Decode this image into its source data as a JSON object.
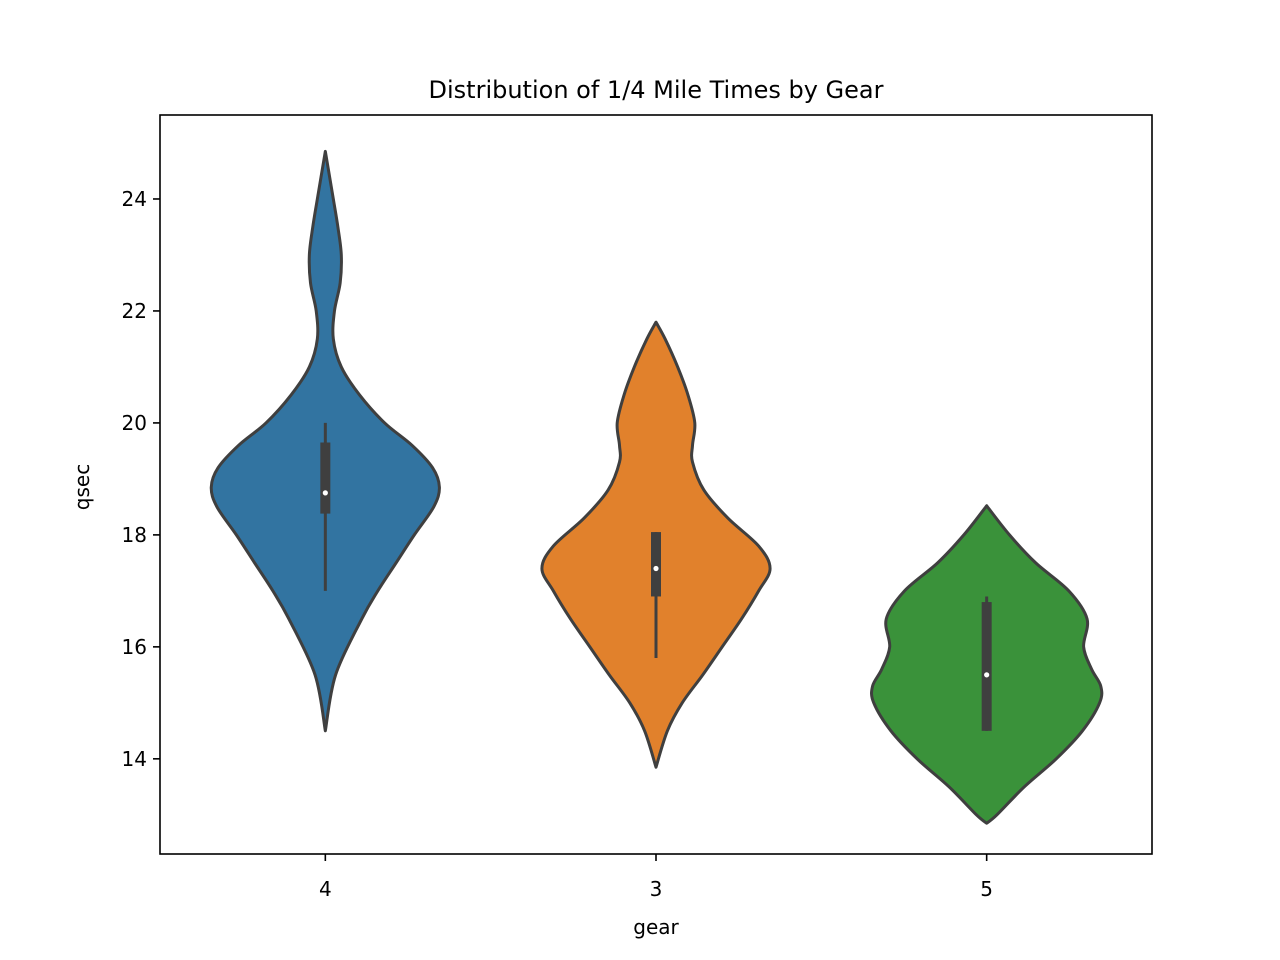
{
  "chart_data": {
    "type": "violin",
    "title": "Distribution of 1/4 Mile Times by Gear",
    "xlabel": "gear",
    "ylabel": "qsec",
    "categories": [
      "4",
      "3",
      "5"
    ],
    "ylim": [
      12.3,
      25.5
    ],
    "yticks": [
      14,
      16,
      18,
      20,
      22,
      24
    ],
    "grid": false,
    "legend": "none",
    "series": [
      {
        "category": "4",
        "color": "#3274a1",
        "min": 14.5,
        "max": 24.85,
        "q1": 18.38,
        "median": 18.75,
        "q3": 19.65,
        "whisker_low": 17.0,
        "whisker_high": 20.0,
        "density": [
          [
            14.5,
            0.0
          ],
          [
            15.5,
            0.09
          ],
          [
            16.5,
            0.32
          ],
          [
            17.0,
            0.46
          ],
          [
            17.5,
            0.62
          ],
          [
            18.0,
            0.78
          ],
          [
            18.5,
            0.95
          ],
          [
            18.85,
            1.0
          ],
          [
            19.2,
            0.94
          ],
          [
            19.6,
            0.76
          ],
          [
            20.0,
            0.52
          ],
          [
            20.5,
            0.3
          ],
          [
            21.0,
            0.14
          ],
          [
            21.5,
            0.07
          ],
          [
            22.0,
            0.08
          ],
          [
            22.5,
            0.13
          ],
          [
            23.0,
            0.14
          ],
          [
            23.5,
            0.11
          ],
          [
            24.0,
            0.07
          ],
          [
            24.85,
            0.0
          ]
        ]
      },
      {
        "category": "3",
        "color": "#e1812c",
        "min": 13.85,
        "max": 21.8,
        "q1": 16.9,
        "median": 17.4,
        "q3": 18.05,
        "whisker_low": 15.8,
        "whisker_high": 18.05,
        "density": [
          [
            13.85,
            0.0
          ],
          [
            14.5,
            0.1
          ],
          [
            15.0,
            0.23
          ],
          [
            15.5,
            0.41
          ],
          [
            16.0,
            0.58
          ],
          [
            16.5,
            0.75
          ],
          [
            17.0,
            0.9
          ],
          [
            17.4,
            1.0
          ],
          [
            17.8,
            0.9
          ],
          [
            18.3,
            0.63
          ],
          [
            18.8,
            0.42
          ],
          [
            19.3,
            0.32
          ],
          [
            19.6,
            0.32
          ],
          [
            20.0,
            0.34
          ],
          [
            20.5,
            0.28
          ],
          [
            21.0,
            0.19
          ],
          [
            21.5,
            0.08
          ],
          [
            21.8,
            0.0
          ]
        ]
      },
      {
        "category": "5",
        "color": "#3a923a",
        "min": 12.85,
        "max": 18.52,
        "q1": 14.5,
        "median": 15.5,
        "q3": 16.8,
        "whisker_low": 14.5,
        "whisker_high": 16.9,
        "density": [
          [
            12.85,
            0.0
          ],
          [
            13.0,
            0.09
          ],
          [
            13.5,
            0.33
          ],
          [
            14.0,
            0.61
          ],
          [
            14.5,
            0.84
          ],
          [
            15.0,
            0.99
          ],
          [
            15.3,
            1.0
          ],
          [
            15.6,
            0.92
          ],
          [
            16.0,
            0.85
          ],
          [
            16.5,
            0.88
          ],
          [
            17.0,
            0.72
          ],
          [
            17.5,
            0.43
          ],
          [
            18.0,
            0.2
          ],
          [
            18.52,
            0.0
          ]
        ]
      }
    ]
  }
}
